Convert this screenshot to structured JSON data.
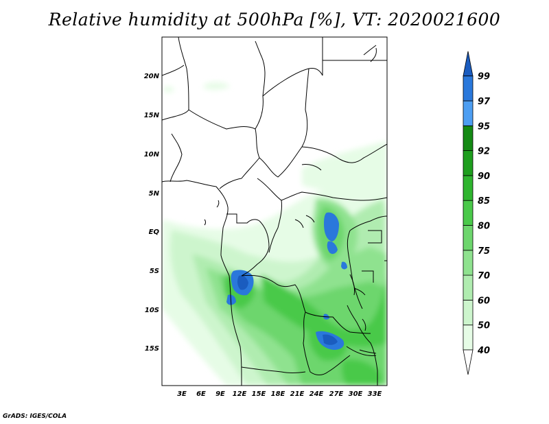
{
  "title": "Relative humidity at 500hPa [%], VT: 2020021600",
  "credit": "GrADS: IGES/COLA",
  "map": {
    "lat_labels": [
      "20N",
      "15N",
      "10N",
      "5N",
      "EQ",
      "5S",
      "10S",
      "15S"
    ],
    "lon_labels": [
      "3E",
      "6E",
      "9E",
      "12E",
      "15E",
      "18E",
      "21E",
      "24E",
      "27E",
      "30E",
      "33E"
    ],
    "extent": {
      "lon_min": 0,
      "lon_max": 35,
      "lat_min": -20,
      "lat_max": 24
    }
  },
  "colorbar": {
    "levels": [
      "40",
      "50",
      "60",
      "70",
      "75",
      "80",
      "85",
      "90",
      "92",
      "95",
      "97",
      "99"
    ],
    "colors": [
      "#ffffff",
      "#e6fce6",
      "#cdf5cd",
      "#b0ecb0",
      "#8fe28f",
      "#6dd66d",
      "#4ac94a",
      "#2fb52f",
      "#1e9e1e",
      "#148a14",
      "#4d9ef2",
      "#2a78db",
      "#1a5cbf"
    ]
  }
}
